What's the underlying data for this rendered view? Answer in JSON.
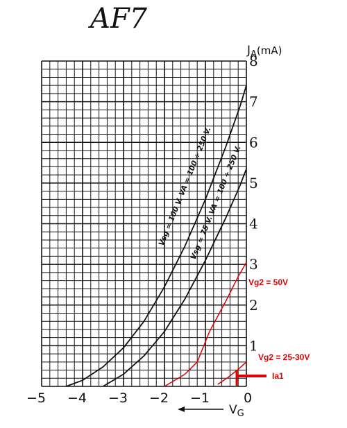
{
  "chart_data": {
    "type": "line",
    "title": "AF7",
    "xlabel": "V",
    "xlabel_sub": "G",
    "ylabel": "J",
    "ylabel_sub": "A",
    "ylabel_unit": "(mA)",
    "xlim": [
      -5,
      0
    ],
    "ylim": [
      0,
      8
    ],
    "x_ticks": [
      -5,
      -4,
      -3,
      -2,
      -1,
      0
    ],
    "x_tick_labels": [
      "−5",
      "−4",
      "−3",
      "−2",
      "−1",
      "0"
    ],
    "y_ticks": [
      1,
      2,
      3,
      4,
      5,
      6,
      7,
      8
    ],
    "y_tick_labels": [
      "1",
      "2",
      "3",
      "4",
      "5",
      "6",
      "7",
      "8"
    ],
    "grid": true,
    "series": [
      {
        "name": "Vsg = 100 V. VA = 100 ÷ 250 V.",
        "color": "#111111",
        "points": [
          [
            -4.4,
            0
          ],
          [
            -4.0,
            0.15
          ],
          [
            -3.5,
            0.48
          ],
          [
            -3.0,
            0.95
          ],
          [
            -2.5,
            1.6
          ],
          [
            -2.0,
            2.45
          ],
          [
            -1.5,
            3.45
          ],
          [
            -1.0,
            4.6
          ],
          [
            -0.5,
            5.9
          ],
          [
            -0.15,
            6.9
          ],
          [
            0,
            7.4
          ]
        ]
      },
      {
        "name": "Vsg = 75 V. VA = 100 ÷ 250 V.",
        "color": "#111111",
        "points": [
          [
            -3.5,
            0
          ],
          [
            -3.0,
            0.3
          ],
          [
            -2.5,
            0.75
          ],
          [
            -2.0,
            1.35
          ],
          [
            -1.5,
            2.15
          ],
          [
            -1.0,
            3.1
          ],
          [
            -0.5,
            4.15
          ],
          [
            -0.15,
            4.95
          ],
          [
            0,
            5.35
          ]
        ]
      },
      {
        "name": "Vg2 = 50V",
        "color": "#e00000",
        "points": [
          [
            -2.0,
            0
          ],
          [
            -1.5,
            0.3
          ],
          [
            -1.2,
            0.6
          ],
          [
            -0.9,
            1.35
          ],
          [
            -0.5,
            2.1
          ],
          [
            -0.2,
            2.7
          ],
          [
            0,
            3.05
          ]
        ]
      },
      {
        "name": "Vg2 = 25-30V",
        "color": "#e00000",
        "points": [
          [
            -0.7,
            0.05
          ],
          [
            -0.45,
            0.22
          ],
          [
            -0.2,
            0.42
          ],
          [
            0,
            0.6
          ]
        ]
      }
    ],
    "annotations": {
      "vg2_50": "Vg2 = 50V",
      "vg2_25": "Vg2 = 25-30V",
      "ia1": "Ia1",
      "curve1": "Vsg = 100 V. VA = 100 ÷ 250 V.",
      "curve2": "Vsg = 75 V. VA = 100 ÷ 250 V."
    }
  }
}
